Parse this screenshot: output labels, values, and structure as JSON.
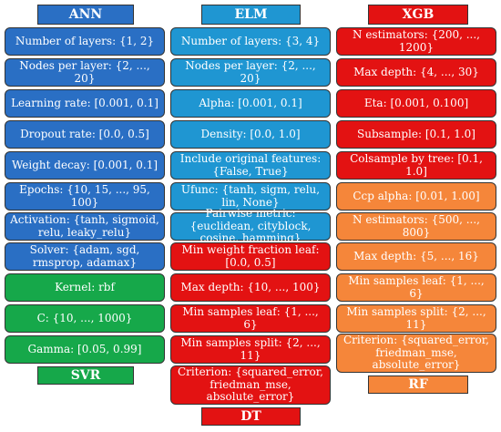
{
  "columns": {
    "ann": {
      "header": "ANN",
      "items": [
        "Number of layers: {1, 2}",
        "Nodes per layer: {2, ..., 20}",
        "Learning rate: [0.001, 0.1]",
        "Dropout rate: [0.0, 0.5]",
        "Weight decay: [0.001, 0.1]",
        "Epochs: {10, 15, ..., 95, 100}",
        "Activation: {tanh, sigmoid, relu, leaky_relu}",
        "Solver: {adam, sgd, rmsprop, adamax}"
      ]
    },
    "svr": {
      "footer": "SVR",
      "items": [
        "Kernel: rbf",
        "C: {10, ..., 1000}",
        "Gamma: [0.05, 0.99]"
      ]
    },
    "elm": {
      "header": "ELM",
      "items": [
        "Number of layers: {3, 4}",
        "Nodes per layer: {2, ..., 20}",
        "Alpha: [0.001, 0.1]",
        "Density: [0.0, 1.0]",
        "Include original features: {False, True}",
        "Ufunc: {tanh, sigm, relu, lin, None}",
        "Pairwise metric: {euclidean, cityblock, cosine, hamming}"
      ]
    },
    "dt": {
      "footer": "DT",
      "items": [
        "Min weight fraction leaf: [0.0, 0.5]",
        "Max depth: {10, ..., 100}",
        "Min samples leaf: {1, ..., 6}",
        "Min samples split: {2, ..., 11}",
        "Criterion: {squared_error, friedman_mse, absolute_error}"
      ]
    },
    "xgb": {
      "header": "XGB",
      "items": [
        "N estimators: {200, ..., 1200}",
        "Max depth: {4, ..., 30}",
        "Eta: [0.001, 0.100]",
        "Subsample: [0.1, 1.0]",
        "Colsample by tree: [0.1, 1.0]"
      ]
    },
    "rf": {
      "footer": "RF",
      "items": [
        "Ccp alpha: [0.01, 1.00]",
        "N estimators: {500, ..., 800}",
        "Max depth: {5, ..., 16}",
        "Min samples leaf: {1, ..., 6}",
        "Min samples split: {2, ..., 11}",
        "Criterion: {squared_error, friedman_mse, absolute_error}"
      ]
    }
  },
  "colors": {
    "ann": "#2a6fc4",
    "elm": "#1f96d2",
    "xgb": "#e31212",
    "svr": "#16a84a",
    "dt": "#e31212",
    "rf": "#f5863a"
  }
}
